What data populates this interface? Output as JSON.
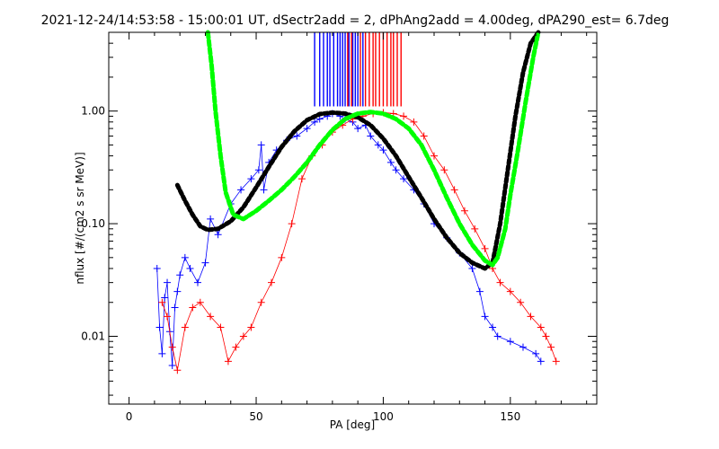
{
  "chart_data": {
    "type": "line",
    "title": "2021-12-24/14:53:58 - 15:00:01 UT, dSectr2add = 2, dPhAng2add = 4.00deg, dPA290_est=   6.7deg",
    "xlabel": "PA [deg]",
    "ylabel": "nflux [#/(cm2 s sr MeV)]",
    "xlim": [
      -8,
      184
    ],
    "ylim": [
      0.0025,
      5.0
    ],
    "yscale": "log",
    "grid": false,
    "x_ticks": [
      0,
      50,
      100,
      150
    ],
    "x_tick_labels": [
      "0",
      "50",
      "100",
      "150"
    ],
    "y_ticks": [
      0.01,
      0.1,
      1.0
    ],
    "y_tick_labels": [
      "0.01",
      "0.10",
      "1.00"
    ],
    "colors": {
      "blue": "#0000ff",
      "red": "#ff0000",
      "black_fit": "#000000",
      "green_fit": "#00ff00"
    },
    "series": [
      {
        "color": "black",
        "style": "thick-dashed",
        "x": [
          19,
          22,
          25,
          28,
          31,
          35,
          40,
          45,
          50,
          55,
          60,
          65,
          70,
          75,
          80,
          85,
          90,
          95,
          100,
          105,
          110,
          115,
          120,
          125,
          130,
          135,
          140,
          143,
          146,
          149,
          152,
          155,
          158,
          161
        ],
        "y": [
          0.22,
          0.16,
          0.12,
          0.095,
          0.088,
          0.09,
          0.105,
          0.14,
          0.21,
          0.32,
          0.48,
          0.66,
          0.83,
          0.94,
          0.97,
          0.95,
          0.88,
          0.75,
          0.57,
          0.4,
          0.26,
          0.17,
          0.11,
          0.075,
          0.055,
          0.045,
          0.04,
          0.045,
          0.1,
          0.3,
          0.9,
          2.2,
          4.0,
          5.0
        ]
      },
      {
        "color": "green",
        "style": "thick-dashed",
        "x": [
          31,
          32.5,
          34,
          36,
          38,
          41,
          45,
          50,
          55,
          60,
          65,
          70,
          75,
          80,
          85,
          90,
          95,
          100,
          105,
          110,
          115,
          120,
          125,
          130,
          135,
          140,
          143,
          145,
          148,
          150,
          153,
          156,
          159,
          161
        ],
        "y": [
          5.0,
          2.5,
          1.0,
          0.4,
          0.19,
          0.12,
          0.11,
          0.13,
          0.16,
          0.2,
          0.26,
          0.35,
          0.5,
          0.68,
          0.85,
          0.95,
          0.98,
          0.95,
          0.85,
          0.7,
          0.5,
          0.3,
          0.17,
          0.1,
          0.065,
          0.047,
          0.043,
          0.05,
          0.09,
          0.18,
          0.45,
          1.2,
          3.0,
          5.0
        ]
      },
      {
        "color": "blue",
        "style": "markers-plus",
        "x": [
          11,
          12,
          13,
          14,
          15,
          16,
          17,
          18,
          19,
          20,
          22,
          24,
          27,
          30,
          32,
          35,
          40,
          44,
          48,
          51,
          52,
          53,
          55,
          58,
          62,
          66,
          70,
          73,
          75,
          78,
          80,
          83,
          85,
          88,
          90,
          93,
          95,
          98,
          100,
          103,
          105,
          108,
          112,
          116,
          120,
          125,
          130,
          135,
          138,
          140,
          143,
          145,
          150,
          155,
          160,
          162
        ],
        "y": [
          0.04,
          0.012,
          0.007,
          0.022,
          0.03,
          0.011,
          0.0055,
          0.018,
          0.025,
          0.035,
          0.05,
          0.04,
          0.03,
          0.045,
          0.11,
          0.08,
          0.15,
          0.2,
          0.25,
          0.3,
          0.5,
          0.2,
          0.35,
          0.45,
          0.55,
          0.6,
          0.7,
          0.8,
          0.85,
          0.9,
          0.95,
          0.9,
          0.85,
          0.8,
          0.7,
          0.75,
          0.6,
          0.5,
          0.45,
          0.35,
          0.3,
          0.25,
          0.2,
          0.15,
          0.1,
          0.075,
          0.055,
          0.04,
          0.025,
          0.015,
          0.012,
          0.01,
          0.009,
          0.008,
          0.007,
          0.006
        ]
      },
      {
        "color": "red",
        "style": "markers-plus",
        "x": [
          13,
          15,
          17,
          19,
          22,
          25,
          28,
          32,
          36,
          39,
          42,
          45,
          48,
          52,
          56,
          60,
          64,
          68,
          72,
          76,
          80,
          84,
          88,
          92,
          96,
          100,
          104,
          108,
          112,
          116,
          120,
          124,
          128,
          132,
          136,
          140,
          143,
          146,
          150,
          154,
          158,
          162,
          164,
          166,
          168
        ],
        "y": [
          0.02,
          0.015,
          0.008,
          0.005,
          0.012,
          0.018,
          0.02,
          0.015,
          0.012,
          0.006,
          0.008,
          0.01,
          0.012,
          0.02,
          0.03,
          0.05,
          0.1,
          0.25,
          0.4,
          0.5,
          0.65,
          0.75,
          0.85,
          0.9,
          0.95,
          0.97,
          0.95,
          0.9,
          0.8,
          0.6,
          0.4,
          0.3,
          0.2,
          0.13,
          0.09,
          0.06,
          0.04,
          0.03,
          0.025,
          0.02,
          0.015,
          0.012,
          0.01,
          0.008,
          0.006
        ]
      }
    ],
    "vertical_marks": {
      "blue_x": [
        73,
        75,
        76.5,
        78,
        79,
        80.5,
        82,
        83,
        84,
        85,
        86.5,
        88,
        89,
        90,
        92
      ],
      "red_x": [
        86,
        87.5,
        91,
        93,
        94.5,
        96,
        97,
        98.5,
        100,
        101.5,
        103,
        104,
        105.5,
        107
      ],
      "y_bottom": 1.1,
      "y_top": 5.0
    }
  }
}
